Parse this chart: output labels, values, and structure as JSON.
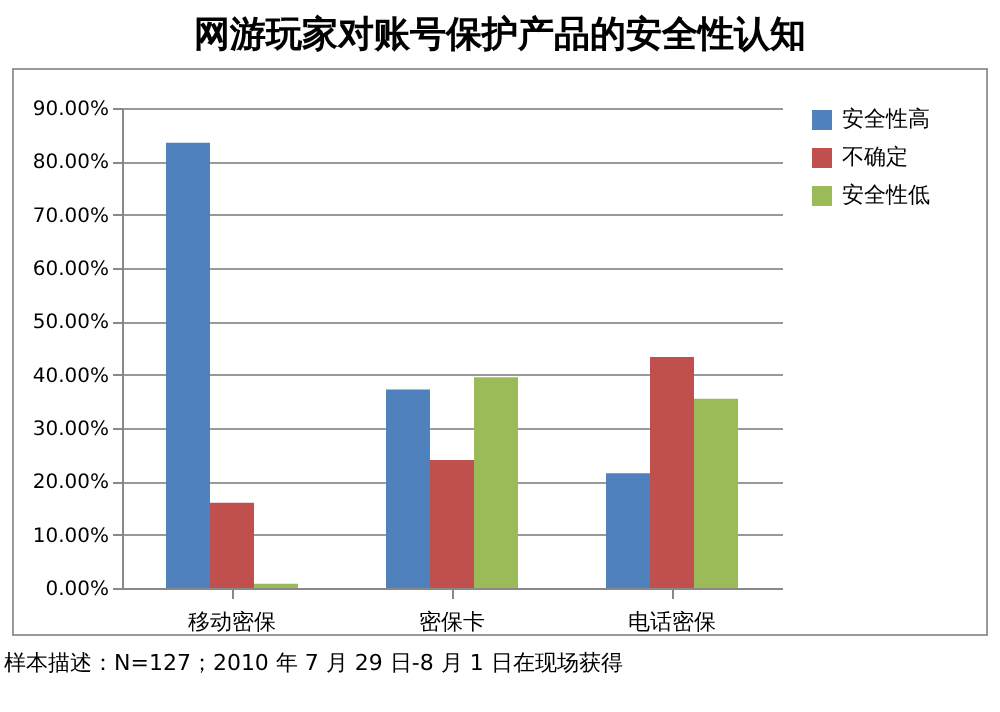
{
  "chart_data": {
    "type": "bar",
    "title": "网游玩家对账号保护产品的安全性认知",
    "categories": [
      "移动密保",
      "密保卡",
      "电话密保"
    ],
    "series": [
      {
        "name": "安全性高",
        "color": "#4f81bd",
        "values": [
          83.5,
          37.2,
          21.5
        ]
      },
      {
        "name": "不确定",
        "color": "#c0504d",
        "values": [
          16.0,
          24.0,
          43.3
        ]
      },
      {
        "name": "安全性低",
        "color": "#9bbb59",
        "values": [
          0.8,
          39.5,
          35.5
        ]
      }
    ],
    "ylim": [
      0,
      90
    ],
    "yticks": [
      {
        "value": 0,
        "label": "0.00%"
      },
      {
        "value": 10,
        "label": "10.00%"
      },
      {
        "value": 20,
        "label": "20.00%"
      },
      {
        "value": 30,
        "label": "30.00%"
      },
      {
        "value": 40,
        "label": "40.00%"
      },
      {
        "value": 50,
        "label": "50.00%"
      },
      {
        "value": 60,
        "label": "60.00%"
      },
      {
        "value": 70,
        "label": "70.00%"
      },
      {
        "value": 80,
        "label": "80.00%"
      },
      {
        "value": 90,
        "label": "90.00%"
      }
    ],
    "grid": "y",
    "legend": "right",
    "annotations": [
      "样本描述：N=127；2010 年 7 月 29 日-8 月 1 日在现场获得"
    ]
  }
}
